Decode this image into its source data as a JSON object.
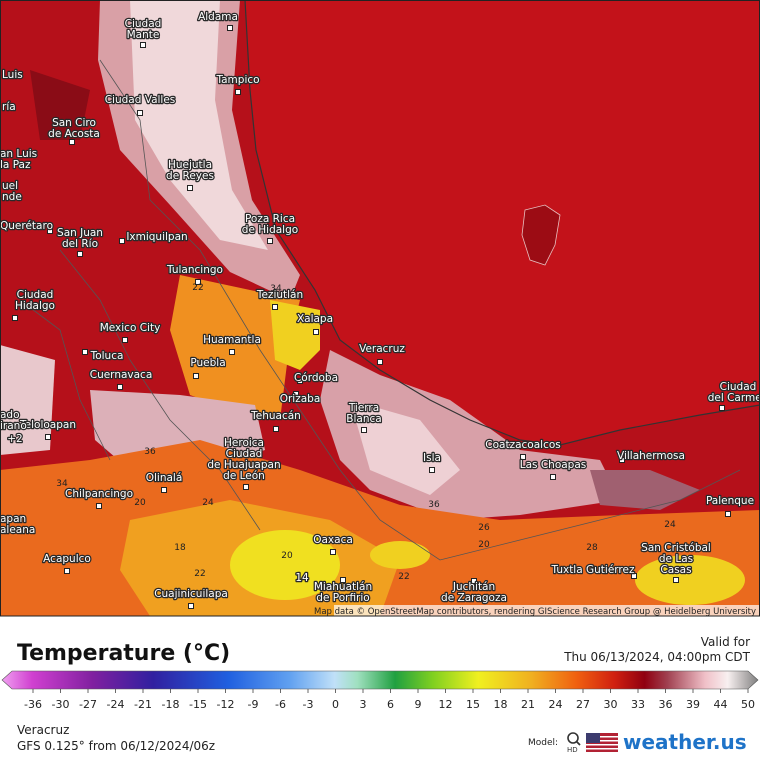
{
  "map": {
    "cities": [
      {
        "lines": [
          "Aldama"
        ]
      },
      {
        "lines": [
          "Ciudad",
          "Mante"
        ]
      },
      {
        "lines": [
          "Tampico"
        ]
      },
      {
        "lines": [
          "Ciudad Valles"
        ]
      },
      {
        "lines": [
          "San Ciro",
          "de Acosta"
        ]
      },
      {
        "lines": [
          "Luis"
        ]
      },
      {
        "lines": [
          "ría"
        ]
      },
      {
        "lines": [
          "an Luis",
          "la Paz"
        ]
      },
      {
        "lines": [
          "uel",
          "nde"
        ]
      },
      {
        "lines": [
          "Huejutla",
          "de Reyes"
        ]
      },
      {
        "lines": [
          "Poza Rica",
          "de Hidalgo"
        ]
      },
      {
        "lines": [
          "Querétaro"
        ]
      },
      {
        "lines": [
          "San Juan",
          "del Río"
        ]
      },
      {
        "lines": [
          "Ixmiquilpan"
        ]
      },
      {
        "lines": [
          "Tulancingo"
        ]
      },
      {
        "lines": [
          "Teziutlán"
        ]
      },
      {
        "lines": [
          "Xalapa"
        ]
      },
      {
        "lines": [
          "Ciudad",
          "Hidalgo"
        ]
      },
      {
        "lines": [
          "Mexico City"
        ]
      },
      {
        "lines": [
          "Huamantla"
        ]
      },
      {
        "lines": [
          "Toluca"
        ]
      },
      {
        "lines": [
          "Puebla"
        ]
      },
      {
        "lines": [
          "Cuernavaca"
        ]
      },
      {
        "lines": [
          "Veracruz"
        ]
      },
      {
        "lines": [
          "Córdoba"
        ]
      },
      {
        "lines": [
          "Orizaba"
        ]
      },
      {
        "lines": [
          "Tierra",
          "Blanca"
        ]
      },
      {
        "lines": [
          "Tehuacán"
        ]
      },
      {
        "lines": [
          "Teloloapan"
        ]
      },
      {
        "lines": [
          "Heroica",
          "Ciudad",
          "de Huajuapan",
          "de León"
        ]
      },
      {
        "lines": [
          "Olinalá"
        ]
      },
      {
        "lines": [
          "Chilpancingo"
        ]
      },
      {
        "lines": [
          "Acapulco"
        ]
      },
      {
        "lines": [
          "Oaxaca"
        ]
      },
      {
        "lines": [
          "Cuajinicuilapa"
        ]
      },
      {
        "lines": [
          "Miahuatlán",
          "de Porfirio"
        ]
      },
      {
        "lines": [
          "Juchitán",
          "de Zaragoza"
        ]
      },
      {
        "lines": [
          "Coatzacoalcos"
        ]
      },
      {
        "lines": [
          "Las Choapas"
        ]
      },
      {
        "lines": [
          "Villahermosa"
        ]
      },
      {
        "lines": [
          "Tuxtla Gutiérrez"
        ]
      },
      {
        "lines": [
          "San Cristóbal",
          "de Las",
          "Casas"
        ]
      },
      {
        "lines": [
          "Palenque"
        ]
      },
      {
        "lines": [
          "Ciudad",
          "del Carmen"
        ]
      },
      {
        "lines": [
          "Isla"
        ]
      },
      {
        "lines": [
          "apan",
          "aleana"
        ]
      },
      {
        "lines": [
          "ado",
          "irano"
        ]
      }
    ],
    "contour_labels": [
      "22",
      "34",
      "36",
      "34",
      "20",
      "24",
      "18",
      "22",
      "20",
      "14",
      "22",
      "36",
      "26",
      "20",
      "28",
      "24",
      "+2"
    ],
    "attribution": "Map data © OpenStreetMap contributors, rendering GIScience Research Group @ Heidelberg University"
  },
  "legend": {
    "title": "Temperature (°C)",
    "valid_label": "Valid for",
    "valid_time": "Thu 06/13/2024, 04:00pm CDT",
    "ticks": [
      -36,
      -30,
      -27,
      -24,
      -21,
      -18,
      -15,
      -12,
      -9,
      -6,
      -3,
      0,
      3,
      6,
      9,
      12,
      15,
      18,
      21,
      24,
      27,
      30,
      33,
      36,
      39,
      44,
      50
    ]
  },
  "footer": {
    "location": "Veracruz",
    "model_run": "GFS 0.125° from  06/12/2024/06z",
    "model_label": "Model:",
    "hd": "HD",
    "brand": "weather.us"
  }
}
